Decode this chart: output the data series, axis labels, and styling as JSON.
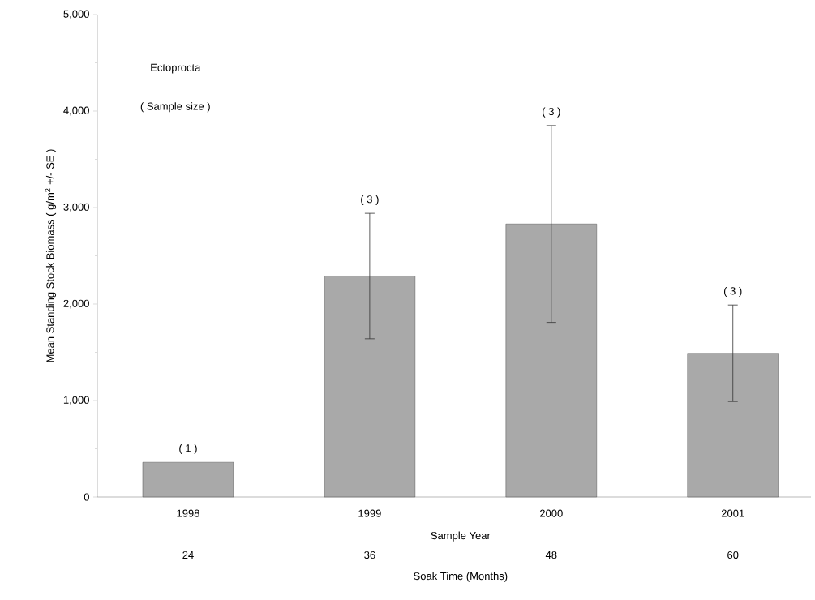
{
  "chart_data": {
    "type": "bar",
    "xlabel": "Sample Year",
    "ylabel": "Mean Standing Stock Biomass ( g/m$^{2}$ +/- SE )",
    "categories": [
      "1998",
      "1999",
      "2000",
      "2001"
    ],
    "values": [
      360,
      2290,
      2830,
      1490
    ],
    "errors": [
      null,
      650,
      1020,
      500
    ],
    "color": "#a9a9a9",
    "ylim": [
      0,
      5000
    ],
    "yticks": [
      0,
      {
        "value": 1000,
        "label": "1,000"
      },
      {
        "value": 2000,
        "label": "2,000"
      },
      {
        "value": 3000,
        "label": "3,000"
      },
      {
        "value": 4000,
        "label": "4,000"
      },
      {
        "value": 5000,
        "label": "5,000"
      }
    ],
    "grid": false,
    "annotations": [
      "Ectoprocta",
      "( Sample size )",
      {
        "text": "( 1 )",
        "x": "1998",
        "y": 360
      },
      {
        "text": "( 3 )",
        "x": "1999",
        "y": 2940
      },
      {
        "text": "( 3 )",
        "x": "2000",
        "y": 3850
      },
      {
        "text": "( 3 )",
        "x": "2001",
        "y": 1990
      },
      "24",
      "36",
      "48",
      "60",
      "Soak Time (Months)"
    ]
  }
}
